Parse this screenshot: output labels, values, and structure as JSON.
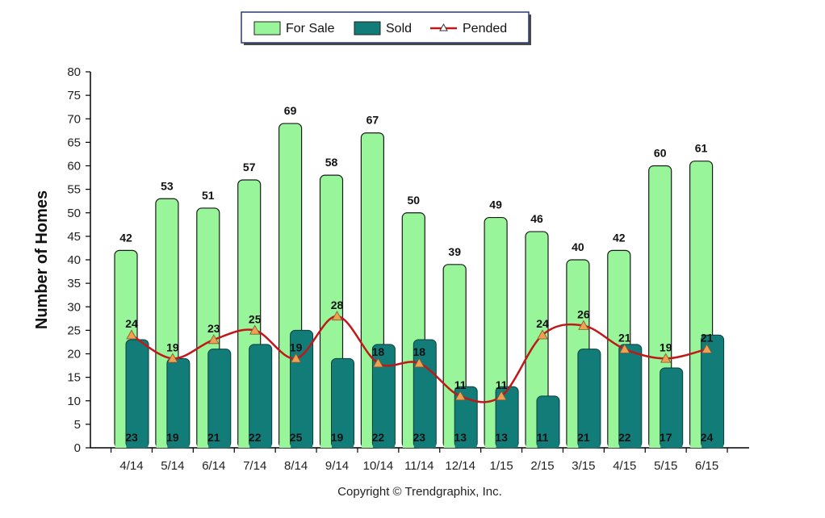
{
  "chart_data": {
    "type": "bar",
    "categories": [
      "4/14",
      "5/14",
      "6/14",
      "7/14",
      "8/14",
      "9/14",
      "10/14",
      "11/14",
      "12/14",
      "1/15",
      "2/15",
      "3/15",
      "4/15",
      "5/15",
      "6/15"
    ],
    "series": [
      {
        "name": "For Sale",
        "type": "bar",
        "color": "#99f59a",
        "values": [
          42,
          53,
          51,
          57,
          69,
          58,
          67,
          50,
          39,
          49,
          46,
          40,
          42,
          60,
          61
        ]
      },
      {
        "name": "Sold",
        "type": "bar",
        "color": "#127c78",
        "values": [
          23,
          19,
          21,
          22,
          25,
          19,
          22,
          23,
          13,
          13,
          11,
          21,
          22,
          17,
          24
        ]
      },
      {
        "name": "Pended",
        "type": "line",
        "color": "#c01818",
        "marker_color": "#f0a050",
        "values": [
          24,
          19,
          23,
          25,
          19,
          28,
          18,
          18,
          11,
          11,
          24,
          26,
          21,
          19,
          21
        ]
      }
    ],
    "ylabel": "Number of Homes",
    "ylim": [
      0,
      80
    ],
    "yticks": [
      0,
      5,
      10,
      15,
      20,
      25,
      30,
      35,
      40,
      45,
      50,
      55,
      60,
      65,
      70,
      75,
      80
    ],
    "legend_position": "top-center",
    "footer": "Copyright © Trendgraphix, Inc."
  }
}
